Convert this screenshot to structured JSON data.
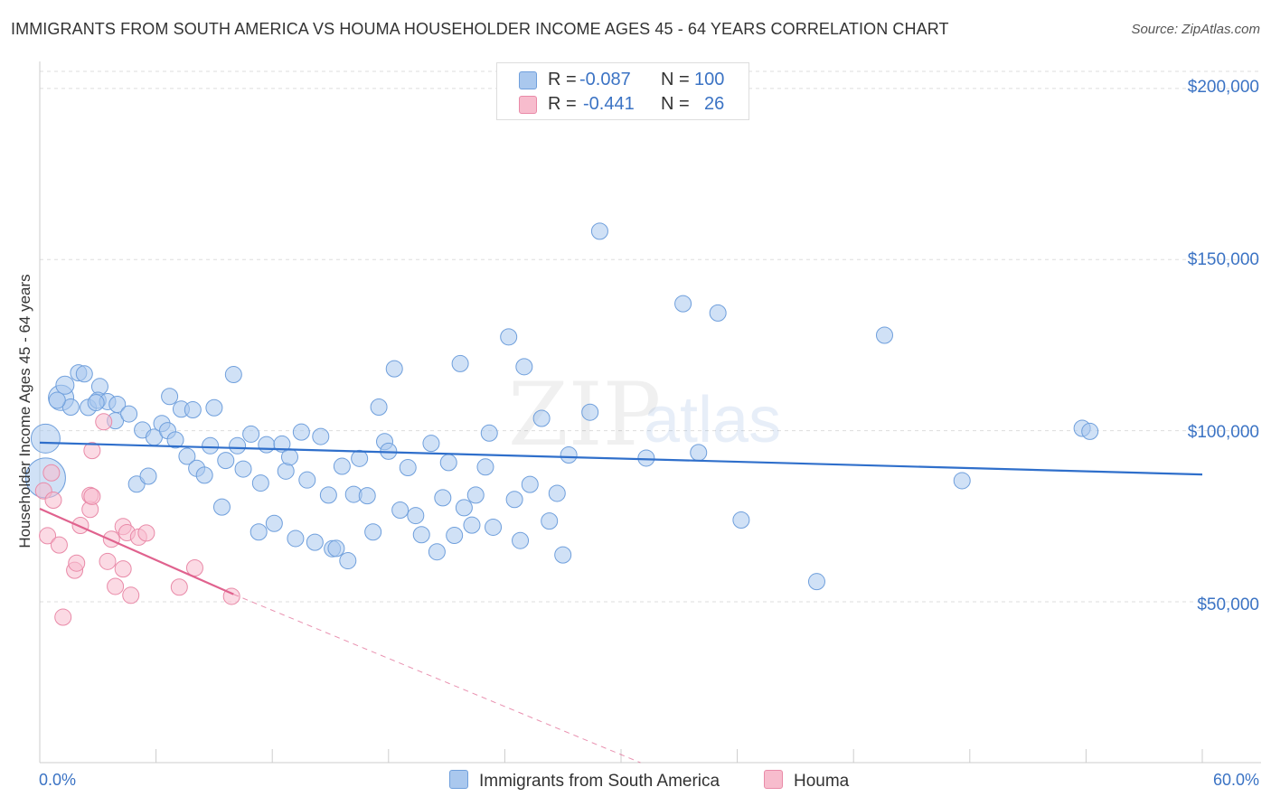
{
  "title": "IMMIGRANTS FROM SOUTH AMERICA VS HOUMA HOUSEHOLDER INCOME AGES 45 - 64 YEARS CORRELATION CHART",
  "source": "Source: ZipAtlas.com",
  "watermark": {
    "zip": "ZIP",
    "atlas": "atlas"
  },
  "colors": {
    "blue_fill": "#aac8ee",
    "blue_stroke": "#6f9fdc",
    "blue_line": "#2f6fcb",
    "pink_fill": "#f7bccd",
    "pink_stroke": "#e98aa8",
    "pink_line": "#e0628e",
    "accent_text": "#3b73c4",
    "grid": "#dddddd"
  },
  "legend": {
    "series": [
      {
        "r_label": "R =",
        "r_value": "-0.087",
        "n_label": "N =",
        "n_value": "100"
      },
      {
        "r_label": "R =",
        "r_value": "-0.441",
        "n_label": "N =",
        "n_value": "26"
      }
    ]
  },
  "bottom_legend": [
    "Immigrants from South America",
    "Houma"
  ],
  "chart_data": {
    "type": "scatter",
    "title": "IMMIGRANTS FROM SOUTH AMERICA VS HOUMA HOUSEHOLDER INCOME AGES 45 - 64 YEARS CORRELATION CHART",
    "xlabel": "",
    "ylabel": "Householder Income Ages 45 - 64 years",
    "xlim": [
      0,
      60
    ],
    "ylim": [
      3000,
      205000
    ],
    "x_tick_labels": [
      "0.0%",
      "60.0%"
    ],
    "y_ticks": [
      50000,
      100000,
      150000,
      200000
    ],
    "y_tick_labels": [
      "$50,000",
      "$100,000",
      "$150,000",
      "$200,000"
    ],
    "grid": true,
    "legend_position": "top-center",
    "series": [
      {
        "name": "Immigrants from South America",
        "R": -0.087,
        "N": 100,
        "trend": {
          "x": [
            0,
            60
          ],
          "y": [
            96500,
            87200
          ]
        },
        "points": [
          [
            0.3,
            97700,
            16
          ],
          [
            0.3,
            86200,
            22
          ],
          [
            1.1,
            109600,
            14
          ],
          [
            1.3,
            113300,
            10
          ],
          [
            1.6,
            106900,
            9
          ],
          [
            2.0,
            116900,
            9
          ],
          [
            2.3,
            116600,
            9
          ],
          [
            2.5,
            106800,
            9
          ],
          [
            3.1,
            112900,
            9
          ],
          [
            3.0,
            108900,
            9
          ],
          [
            3.5,
            108500,
            9
          ],
          [
            3.9,
            102900,
            9
          ],
          [
            4.0,
            107700,
            9
          ],
          [
            4.6,
            104900,
            9
          ],
          [
            5.0,
            84400,
            9
          ],
          [
            5.3,
            100200,
            9
          ],
          [
            5.6,
            86700,
            9
          ],
          [
            5.9,
            98100,
            9
          ],
          [
            6.3,
            102100,
            9
          ],
          [
            6.6,
            100000,
            9
          ],
          [
            6.7,
            110000,
            9
          ],
          [
            7.0,
            97300,
            9
          ],
          [
            7.3,
            106300,
            9
          ],
          [
            7.6,
            92500,
            9
          ],
          [
            7.9,
            106100,
            9
          ],
          [
            8.1,
            89000,
            9
          ],
          [
            8.5,
            87000,
            9
          ],
          [
            8.8,
            95600,
            9
          ],
          [
            9.0,
            106700,
            9
          ],
          [
            9.4,
            77700,
            9
          ],
          [
            9.6,
            91300,
            9
          ],
          [
            10.0,
            116400,
            9
          ],
          [
            10.2,
            95600,
            9
          ],
          [
            10.5,
            88800,
            9
          ],
          [
            10.9,
            99000,
            9
          ],
          [
            11.3,
            70400,
            9
          ],
          [
            11.4,
            84700,
            9
          ],
          [
            11.7,
            95900,
            9
          ],
          [
            12.1,
            72900,
            9
          ],
          [
            12.5,
            96100,
            9
          ],
          [
            12.7,
            88200,
            9
          ],
          [
            12.9,
            92300,
            9
          ],
          [
            13.2,
            68500,
            9
          ],
          [
            13.5,
            99600,
            9
          ],
          [
            13.8,
            85600,
            9
          ],
          [
            14.2,
            67400,
            9
          ],
          [
            14.5,
            98300,
            9
          ],
          [
            14.9,
            81200,
            9
          ],
          [
            15.1,
            65500,
            9
          ],
          [
            15.3,
            65600,
            9
          ],
          [
            15.6,
            89600,
            9
          ],
          [
            15.9,
            62000,
            9
          ],
          [
            16.2,
            81400,
            9
          ],
          [
            16.5,
            91900,
            9
          ],
          [
            16.9,
            81000,
            9
          ],
          [
            17.2,
            70400,
            9
          ],
          [
            17.5,
            106900,
            9
          ],
          [
            17.8,
            96800,
            9
          ],
          [
            18.0,
            94000,
            9
          ],
          [
            18.3,
            118100,
            9
          ],
          [
            18.6,
            76800,
            9
          ],
          [
            19.0,
            89200,
            9
          ],
          [
            19.4,
            75200,
            9
          ],
          [
            19.7,
            69600,
            9
          ],
          [
            20.2,
            96300,
            9
          ],
          [
            20.5,
            64600,
            9
          ],
          [
            20.8,
            80400,
            9
          ],
          [
            21.1,
            90700,
            9
          ],
          [
            21.4,
            69400,
            9
          ],
          [
            21.7,
            119600,
            9
          ],
          [
            21.9,
            77500,
            9
          ],
          [
            22.3,
            72400,
            9
          ],
          [
            22.5,
            81200,
            9
          ],
          [
            23.0,
            89400,
            9
          ],
          [
            23.2,
            99300,
            9
          ],
          [
            23.4,
            71800,
            9
          ],
          [
            24.2,
            127400,
            9
          ],
          [
            24.5,
            79900,
            9
          ],
          [
            24.8,
            67900,
            9
          ],
          [
            25.0,
            118700,
            9
          ],
          [
            25.3,
            84300,
            9
          ],
          [
            25.9,
            103600,
            9
          ],
          [
            26.3,
            73600,
            9
          ],
          [
            26.7,
            81700,
            9
          ],
          [
            27.0,
            63700,
            9
          ],
          [
            27.3,
            92900,
            9
          ],
          [
            28.4,
            105400,
            9
          ],
          [
            28.9,
            158300,
            9
          ],
          [
            31.3,
            92000,
            9
          ],
          [
            33.2,
            137100,
            9
          ],
          [
            34.0,
            93600,
            9
          ],
          [
            35.0,
            134400,
            9
          ],
          [
            36.2,
            73900,
            9
          ],
          [
            40.1,
            55900,
            9
          ],
          [
            43.6,
            127900,
            9
          ],
          [
            47.6,
            85400,
            9
          ],
          [
            53.8,
            100700,
            9
          ],
          [
            54.2,
            99800,
            9
          ],
          [
            0.9,
            108900,
            9
          ],
          [
            2.9,
            108200,
            9
          ]
        ]
      },
      {
        "name": "Houma",
        "R": -0.441,
        "N": 26,
        "trend": {
          "x": [
            0,
            10.0
          ],
          "y": [
            77200,
            52200
          ]
        },
        "trend_dashed": {
          "x": [
            10.0,
            31.0
          ],
          "y": [
            52200,
            3000
          ]
        },
        "points": [
          [
            0.2,
            82400,
            9
          ],
          [
            0.4,
            69300,
            9
          ],
          [
            0.7,
            79700,
            9
          ],
          [
            0.6,
            87700,
            9
          ],
          [
            1.0,
            66600,
            9
          ],
          [
            1.2,
            45500,
            9
          ],
          [
            1.8,
            59200,
            9
          ],
          [
            1.9,
            61300,
            9
          ],
          [
            2.1,
            72300,
            9
          ],
          [
            2.6,
            77000,
            9
          ],
          [
            2.6,
            81100,
            9
          ],
          [
            2.7,
            80800,
            9
          ],
          [
            2.7,
            94200,
            9
          ],
          [
            3.3,
            102600,
            9
          ],
          [
            3.5,
            61800,
            9
          ],
          [
            3.7,
            68300,
            9
          ],
          [
            3.9,
            54500,
            9
          ],
          [
            4.3,
            72000,
            9
          ],
          [
            4.3,
            59600,
            9
          ],
          [
            4.5,
            70200,
            9
          ],
          [
            4.7,
            51900,
            9
          ],
          [
            5.1,
            68900,
            9
          ],
          [
            5.5,
            70100,
            9
          ],
          [
            7.2,
            54300,
            9
          ],
          [
            8.0,
            59900,
            9
          ],
          [
            9.9,
            51600,
            9
          ]
        ]
      }
    ]
  }
}
